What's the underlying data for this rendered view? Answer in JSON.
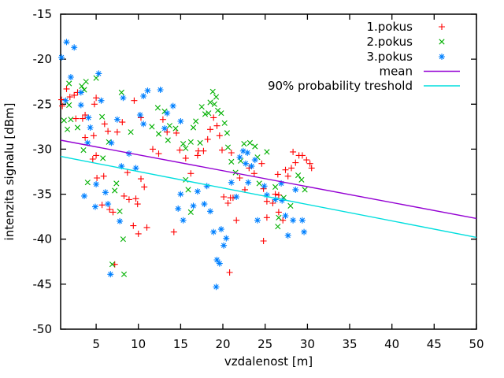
{
  "chart_data": {
    "type": "scatter",
    "title": "",
    "xlabel": "vzdalenost [m]",
    "ylabel": "intenzita signalu [dBm]",
    "xlim": [
      0.8,
      50
    ],
    "ylim": [
      -50,
      -15
    ],
    "xticks": [
      5,
      10,
      15,
      20,
      25,
      30,
      35,
      40,
      45,
      50
    ],
    "yticks": [
      -50,
      -45,
      -40,
      -35,
      -30,
      -25,
      -20,
      -15
    ],
    "grid": false,
    "legend_position": "top-right",
    "background_color": "#ffffff",
    "axis_color": "#000000",
    "series": [
      {
        "name": "1.pokus",
        "kind": "scatter",
        "marker": "plus",
        "color": "#ff0000",
        "points": [
          [
            0.9,
            -24.5
          ],
          [
            1.5,
            -23.3
          ],
          [
            1.0,
            -25.2
          ],
          [
            1.9,
            -24.2
          ],
          [
            2.4,
            -24.0
          ],
          [
            2.8,
            -23.7
          ],
          [
            2.6,
            -26.6
          ],
          [
            3.4,
            -26.6
          ],
          [
            3.7,
            -26.2
          ],
          [
            4.8,
            -25.0
          ],
          [
            5.0,
            -24.3
          ],
          [
            4.7,
            -28.5
          ],
          [
            3.7,
            -28.7
          ],
          [
            6.0,
            -27.2
          ],
          [
            6.4,
            -28.0
          ],
          [
            7.5,
            -28.1
          ],
          [
            8.1,
            -27.0
          ],
          [
            9.5,
            -24.6
          ],
          [
            10.3,
            -26.5
          ],
          [
            12.9,
            -26.7
          ],
          [
            13.4,
            -28.1
          ],
          [
            14.5,
            -28.2
          ],
          [
            14.9,
            -30.1
          ],
          [
            15.6,
            -31.0
          ],
          [
            11.7,
            -30.0
          ],
          [
            12.4,
            -30.5
          ],
          [
            5.0,
            -30.7
          ],
          [
            4.6,
            -31.1
          ],
          [
            5.1,
            -33.2
          ],
          [
            5.9,
            -33.0
          ],
          [
            8.7,
            -32.6
          ],
          [
            10.3,
            -33.3
          ],
          [
            10.7,
            -34.2
          ],
          [
            8.3,
            -35.2
          ],
          [
            8.9,
            -35.6
          ],
          [
            5.7,
            -36.2
          ],
          [
            6.6,
            -36.7
          ],
          [
            7.0,
            -37.0
          ],
          [
            9.7,
            -35.5
          ],
          [
            9.9,
            -36.1
          ],
          [
            9.4,
            -38.5
          ],
          [
            11.0,
            -38.7
          ],
          [
            10.0,
            -39.4
          ],
          [
            14.2,
            -39.2
          ],
          [
            7.2,
            -42.8
          ],
          [
            18.9,
            -26.5
          ],
          [
            18.5,
            -27.8
          ],
          [
            19.3,
            -27.4
          ],
          [
            19.6,
            -28.5
          ],
          [
            18.2,
            -28.9
          ],
          [
            17.7,
            -30.2
          ],
          [
            17.1,
            -30.2
          ],
          [
            17.0,
            -30.7
          ],
          [
            19.9,
            -30.1
          ],
          [
            21.0,
            -30.4
          ],
          [
            23.1,
            -32.1
          ],
          [
            24.6,
            -31.6
          ],
          [
            23.7,
            -32.7
          ],
          [
            26.5,
            -32.8
          ],
          [
            27.7,
            -33.0
          ],
          [
            28.3,
            -30.3
          ],
          [
            29.0,
            -30.7
          ],
          [
            29.4,
            -30.7
          ],
          [
            29.9,
            -31.2
          ],
          [
            30.3,
            -31.6
          ],
          [
            30.5,
            -32.1
          ],
          [
            28.6,
            -31.5
          ],
          [
            28.1,
            -32.1
          ],
          [
            27.4,
            -32.3
          ],
          [
            16.2,
            -32.7
          ],
          [
            20.1,
            -35.3
          ],
          [
            20.9,
            -35.4
          ],
          [
            21.2,
            -35.4
          ],
          [
            20.6,
            -36.0
          ],
          [
            22.6,
            -34.5
          ],
          [
            24.8,
            -34.4
          ],
          [
            26.2,
            -35.0
          ],
          [
            26.6,
            -35.1
          ],
          [
            25.2,
            -35.8
          ],
          [
            25.9,
            -36.0
          ],
          [
            26.6,
            -37.0
          ],
          [
            27.1,
            -37.9
          ],
          [
            25.2,
            -37.6
          ],
          [
            21.6,
            -37.9
          ],
          [
            24.8,
            -40.2
          ],
          [
            20.8,
            -43.7
          ],
          [
            22.0,
            -33.2
          ]
        ]
      },
      {
        "name": "2.pokus",
        "kind": "scatter",
        "marker": "times",
        "color": "#00b000",
        "points": [
          [
            1.8,
            -22.7
          ],
          [
            3.3,
            -23.0
          ],
          [
            3.6,
            -23.4
          ],
          [
            5.0,
            -22.1
          ],
          [
            3.8,
            -22.5
          ],
          [
            1.8,
            -25.1
          ],
          [
            1.2,
            -26.8
          ],
          [
            2.0,
            -26.7
          ],
          [
            1.6,
            -27.8
          ],
          [
            2.8,
            -27.6
          ],
          [
            5.7,
            -26.4
          ],
          [
            6.5,
            -29.2
          ],
          [
            5.8,
            -31.0
          ],
          [
            3.5,
            -30.1
          ],
          [
            8.0,
            -23.7
          ],
          [
            9.1,
            -28.1
          ],
          [
            11.6,
            -27.5
          ],
          [
            12.3,
            -25.4
          ],
          [
            13.1,
            -25.8
          ],
          [
            13.7,
            -27.4
          ],
          [
            14.4,
            -27.7
          ],
          [
            15.3,
            -29.4
          ],
          [
            15.6,
            -29.9
          ],
          [
            12.4,
            -28.3
          ],
          [
            13.5,
            -29.0
          ],
          [
            4.0,
            -33.7
          ],
          [
            7.4,
            -33.8
          ],
          [
            7.2,
            -34.6
          ],
          [
            7.8,
            -36.9
          ],
          [
            8.2,
            -40.0
          ],
          [
            6.9,
            -42.8
          ],
          [
            8.3,
            -43.9
          ],
          [
            15.6,
            -33.4
          ],
          [
            18.5,
            -24.8
          ],
          [
            19.0,
            -25.0
          ],
          [
            17.9,
            -26.1
          ],
          [
            18.3,
            -26.0
          ],
          [
            19.4,
            -25.7
          ],
          [
            19.8,
            -26.0
          ],
          [
            20.2,
            -27.1
          ],
          [
            20.5,
            -28.2
          ],
          [
            16.8,
            -26.9
          ],
          [
            16.5,
            -27.6
          ],
          [
            16.2,
            -29.2
          ],
          [
            17.3,
            -29.3
          ],
          [
            20.6,
            -29.8
          ],
          [
            22.5,
            -29.4
          ],
          [
            23.2,
            -29.3
          ],
          [
            23.8,
            -29.7
          ],
          [
            25.2,
            -30.3
          ],
          [
            24.1,
            -30.9
          ],
          [
            22.1,
            -31.3
          ],
          [
            21.0,
            -31.4
          ],
          [
            18.8,
            -23.6
          ],
          [
            19.2,
            -24.2
          ],
          [
            17.5,
            -25.3
          ],
          [
            15.9,
            -34.5
          ],
          [
            16.2,
            -37.0
          ],
          [
            26.2,
            -34.2
          ],
          [
            27.2,
            -35.4
          ],
          [
            28.0,
            -36.3
          ],
          [
            26.6,
            -37.6
          ],
          [
            26.5,
            -38.6
          ],
          [
            28.9,
            -32.9
          ],
          [
            29.3,
            -33.4
          ],
          [
            29.7,
            -34.5
          ],
          [
            24.3,
            -33.8
          ],
          [
            21.5,
            -32.6
          ]
        ]
      },
      {
        "name": "3.pokus",
        "kind": "scatter",
        "marker": "asterisk",
        "color": "#0080ff",
        "points": [
          [
            1.5,
            -18.1
          ],
          [
            2.4,
            -18.7
          ],
          [
            0.9,
            -19.8
          ],
          [
            2.0,
            -22.0
          ],
          [
            5.3,
            -21.6
          ],
          [
            3.2,
            -23.7
          ],
          [
            1.4,
            -24.6
          ],
          [
            3.2,
            -25.1
          ],
          [
            5.6,
            -24.6
          ],
          [
            8.2,
            -24.3
          ],
          [
            11.1,
            -23.5
          ],
          [
            10.6,
            -24.1
          ],
          [
            4.1,
            -26.5
          ],
          [
            4.3,
            -27.6
          ],
          [
            7.5,
            -26.7
          ],
          [
            10.2,
            -26.2
          ],
          [
            10.6,
            -27.2
          ],
          [
            13.4,
            -26.0
          ],
          [
            13.1,
            -27.7
          ],
          [
            15.0,
            -26.9
          ],
          [
            4.0,
            -29.3
          ],
          [
            6.8,
            -29.3
          ],
          [
            8.9,
            -30.5
          ],
          [
            8.0,
            -31.9
          ],
          [
            9.7,
            -32.1
          ],
          [
            12.6,
            -23.4
          ],
          [
            14.1,
            -25.2
          ],
          [
            5.0,
            -33.9
          ],
          [
            3.6,
            -35.2
          ],
          [
            6.1,
            -34.8
          ],
          [
            6.4,
            -36.1
          ],
          [
            4.9,
            -36.4
          ],
          [
            7.8,
            -38.0
          ],
          [
            6.7,
            -43.9
          ],
          [
            15.0,
            -35.0
          ],
          [
            14.7,
            -36.6
          ],
          [
            15.3,
            -37.9
          ],
          [
            22.4,
            -30.2
          ],
          [
            22.9,
            -30.4
          ],
          [
            22.0,
            -30.9
          ],
          [
            23.8,
            -31.2
          ],
          [
            22.7,
            -31.6
          ],
          [
            23.4,
            -31.9
          ],
          [
            18.1,
            -34.1
          ],
          [
            17.0,
            -34.7
          ],
          [
            17.8,
            -36.1
          ],
          [
            18.5,
            -36.9
          ],
          [
            16.5,
            -36.3
          ],
          [
            21.0,
            -33.7
          ],
          [
            21.6,
            -35.3
          ],
          [
            23.0,
            -33.7
          ],
          [
            24.9,
            -34.1
          ],
          [
            26.9,
            -33.8
          ],
          [
            28.6,
            -34.5
          ],
          [
            25.2,
            -35.1
          ],
          [
            26.2,
            -35.6
          ],
          [
            27.0,
            -35.7
          ],
          [
            27.4,
            -37.4
          ],
          [
            28.3,
            -37.9
          ],
          [
            29.4,
            -37.9
          ],
          [
            24.1,
            -37.9
          ],
          [
            27.7,
            -39.6
          ],
          [
            29.6,
            -39.2
          ],
          [
            18.9,
            -39.2
          ],
          [
            19.8,
            -38.9
          ],
          [
            20.4,
            -39.9
          ],
          [
            20.1,
            -40.7
          ],
          [
            19.3,
            -42.3
          ],
          [
            19.6,
            -42.7
          ],
          [
            19.2,
            -45.3
          ]
        ]
      },
      {
        "name": "mean",
        "kind": "line",
        "color": "#9400d3",
        "points": [
          [
            0.8,
            -29.0
          ],
          [
            50,
            -37.7
          ]
        ]
      },
      {
        "name": "90% probability treshold",
        "kind": "line",
        "color": "#00dede",
        "points": [
          [
            0.8,
            -30.8
          ],
          [
            50,
            -39.8
          ]
        ]
      }
    ]
  }
}
